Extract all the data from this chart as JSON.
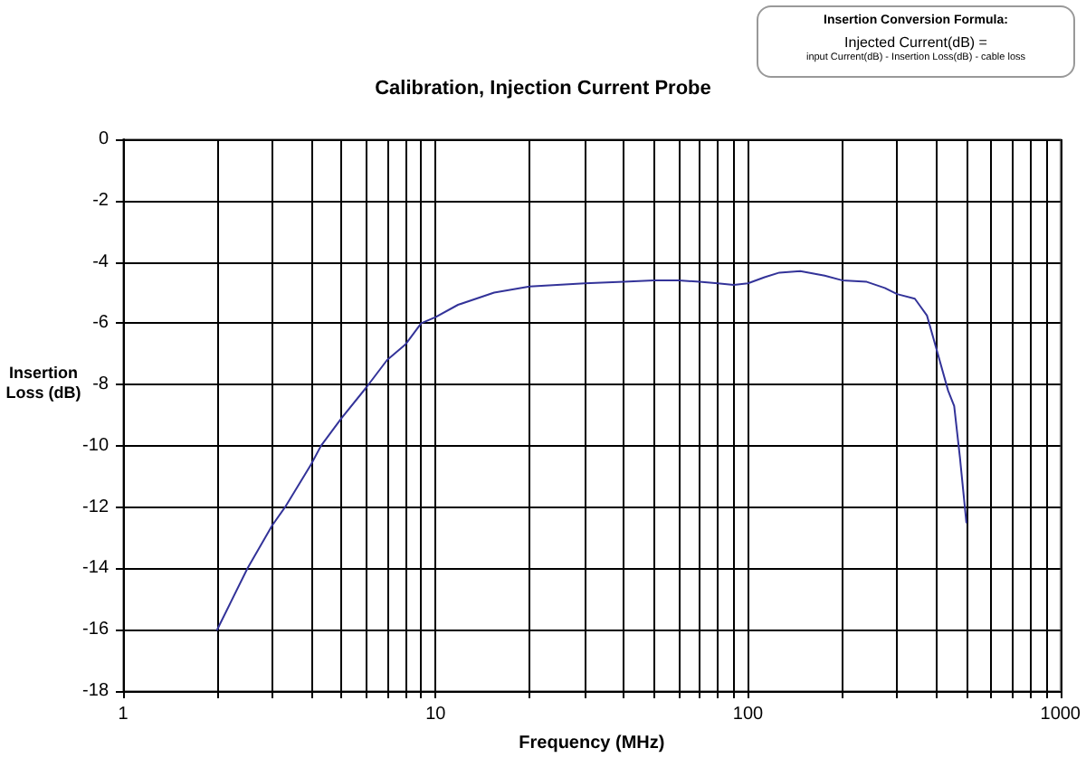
{
  "chart_data": {
    "type": "line",
    "title": "Calibration, Injection Current Probe",
    "xlabel": "Frequency (MHz)",
    "ylabel": "Insertion Loss (dB)",
    "annotations": [
      "Insertion Conversion Formula:",
      "Injected Current(dB) =",
      "input Current(dB) - Insertion Loss(dB) - cable loss"
    ],
    "x": [
      2,
      2.5,
      3,
      3.3,
      4,
      4.3,
      5,
      6,
      7,
      8,
      9,
      10,
      11.8,
      15.4,
      20,
      30,
      40,
      50,
      60,
      70,
      80,
      90,
      100,
      113,
      126,
      147,
      176,
      200,
      240,
      274,
      300,
      342,
      374,
      400,
      437,
      457,
      477,
      500
    ],
    "values": [
      -16,
      -14,
      -12.6,
      -12,
      -10.6,
      -10,
      -9.1,
      -8.1,
      -7.2,
      -6.7,
      -6.0,
      -5.8,
      -5.4,
      -5.0,
      -4.8,
      -4.7,
      -4.65,
      -4.6,
      -4.6,
      -4.65,
      -4.7,
      -4.75,
      -4.7,
      -4.5,
      -4.35,
      -4.3,
      -4.45,
      -4.6,
      -4.65,
      -4.85,
      -5.05,
      -5.2,
      -5.75,
      -6.8,
      -8.2,
      -8.7,
      -10.4,
      -12.5
    ],
    "color": "#333399",
    "log": "x",
    "xlim": [
      1,
      1000
    ],
    "xticks": [
      1,
      {
        "value": 2,
        "label": null
      },
      {
        "value": 3,
        "label": null
      },
      {
        "value": 4,
        "label": null
      },
      {
        "value": 5,
        "label": null
      },
      {
        "value": 6,
        "label": null
      },
      {
        "value": 7,
        "label": null
      },
      {
        "value": 8,
        "label": null
      },
      {
        "value": 9,
        "label": null
      },
      10,
      {
        "value": 20,
        "label": null
      },
      {
        "value": 30,
        "label": null
      },
      {
        "value": 40,
        "label": null
      },
      {
        "value": 50,
        "label": null
      },
      {
        "value": 60,
        "label": null
      },
      {
        "value": 70,
        "label": null
      },
      {
        "value": 80,
        "label": null
      },
      {
        "value": 90,
        "label": null
      },
      100,
      {
        "value": 200,
        "label": null
      },
      {
        "value": 300,
        "label": null
      },
      {
        "value": 400,
        "label": null
      },
      {
        "value": 500,
        "label": null
      },
      {
        "value": 600,
        "label": null
      },
      {
        "value": 700,
        "label": null
      },
      {
        "value": 800,
        "label": null
      },
      {
        "value": 900,
        "label": null
      },
      1000
    ],
    "ylim": [
      -18,
      0
    ],
    "yticks": [
      -18,
      -16,
      -14,
      -12,
      -10,
      -8,
      -6,
      -4,
      -2,
      0
    ],
    "grid": true,
    "marker": "none",
    "line_style": "solid"
  }
}
